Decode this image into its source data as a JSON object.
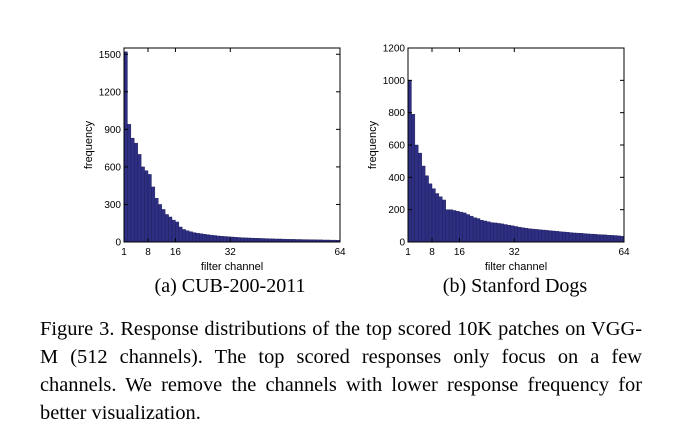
{
  "chart_data": [
    {
      "type": "bar",
      "subcaption": "(a) CUB-200-2011",
      "xlabel": "filter channel",
      "ylabel": "frequency",
      "ylim": [
        0,
        1550
      ],
      "xlim": [
        1,
        64
      ],
      "yticks": [
        "0",
        "300",
        "600",
        "900",
        "1200",
        "1500"
      ],
      "xticks": [
        "1",
        "8",
        "16",
        "32",
        "64"
      ],
      "x": [
        1,
        2,
        3,
        4,
        5,
        6,
        7,
        8,
        9,
        10,
        11,
        12,
        13,
        14,
        15,
        16,
        17,
        18,
        19,
        20,
        21,
        22,
        23,
        24,
        25,
        26,
        27,
        28,
        29,
        30,
        31,
        32,
        33,
        34,
        35,
        36,
        37,
        38,
        39,
        40,
        41,
        42,
        43,
        44,
        45,
        46,
        47,
        48,
        49,
        50,
        51,
        52,
        53,
        54,
        55,
        56,
        57,
        58,
        59,
        60,
        61,
        62,
        63
      ],
      "values": [
        1520,
        940,
        830,
        790,
        700,
        600,
        570,
        540,
        440,
        350,
        300,
        260,
        220,
        200,
        175,
        160,
        120,
        100,
        90,
        82,
        75,
        70,
        66,
        62,
        58,
        55,
        52,
        48,
        46,
        44,
        42,
        40,
        38,
        36,
        34,
        33,
        32,
        31,
        30,
        29,
        28,
        27,
        26,
        25,
        24,
        24,
        23,
        22,
        21,
        21,
        20,
        20,
        19,
        19,
        18,
        18,
        17,
        17,
        16,
        16,
        15,
        15,
        14
      ],
      "bar_color": "#2e2f83"
    },
    {
      "type": "bar",
      "subcaption": "(b) Stanford Dogs",
      "xlabel": "filter channel",
      "ylabel": "frequency",
      "ylim": [
        0,
        1200
      ],
      "xlim": [
        1,
        64
      ],
      "yticks": [
        "0",
        "200",
        "400",
        "600",
        "800",
        "1000",
        "1200"
      ],
      "xticks": [
        "1",
        "8",
        "16",
        "32",
        "64"
      ],
      "x": [
        1,
        2,
        3,
        4,
        5,
        6,
        7,
        8,
        9,
        10,
        11,
        12,
        13,
        14,
        15,
        16,
        17,
        18,
        19,
        20,
        21,
        22,
        23,
        24,
        25,
        26,
        27,
        28,
        29,
        30,
        31,
        32,
        33,
        34,
        35,
        36,
        37,
        38,
        39,
        40,
        41,
        42,
        43,
        44,
        45,
        46,
        47,
        48,
        49,
        50,
        51,
        52,
        53,
        54,
        55,
        56,
        57,
        58,
        59,
        60,
        61,
        62,
        63
      ],
      "values": [
        1000,
        790,
        600,
        550,
        470,
        410,
        360,
        330,
        300,
        280,
        260,
        200,
        200,
        195,
        190,
        185,
        180,
        170,
        160,
        150,
        145,
        135,
        130,
        125,
        120,
        118,
        115,
        112,
        108,
        104,
        100,
        96,
        92,
        88,
        85,
        82,
        80,
        78,
        76,
        74,
        72,
        70,
        68,
        66,
        64,
        62,
        60,
        58,
        56,
        55,
        54,
        52,
        50,
        49,
        48,
        46,
        45,
        44,
        42,
        41,
        40,
        38,
        36
      ],
      "bar_color": "#2e2f83"
    }
  ],
  "caption": "Figure 3. Response distributions of the top scored 10K patches on VGG-M (512 channels). The top scored responses only focus on a few channels. We remove the channels with lower response frequency for better visualization."
}
